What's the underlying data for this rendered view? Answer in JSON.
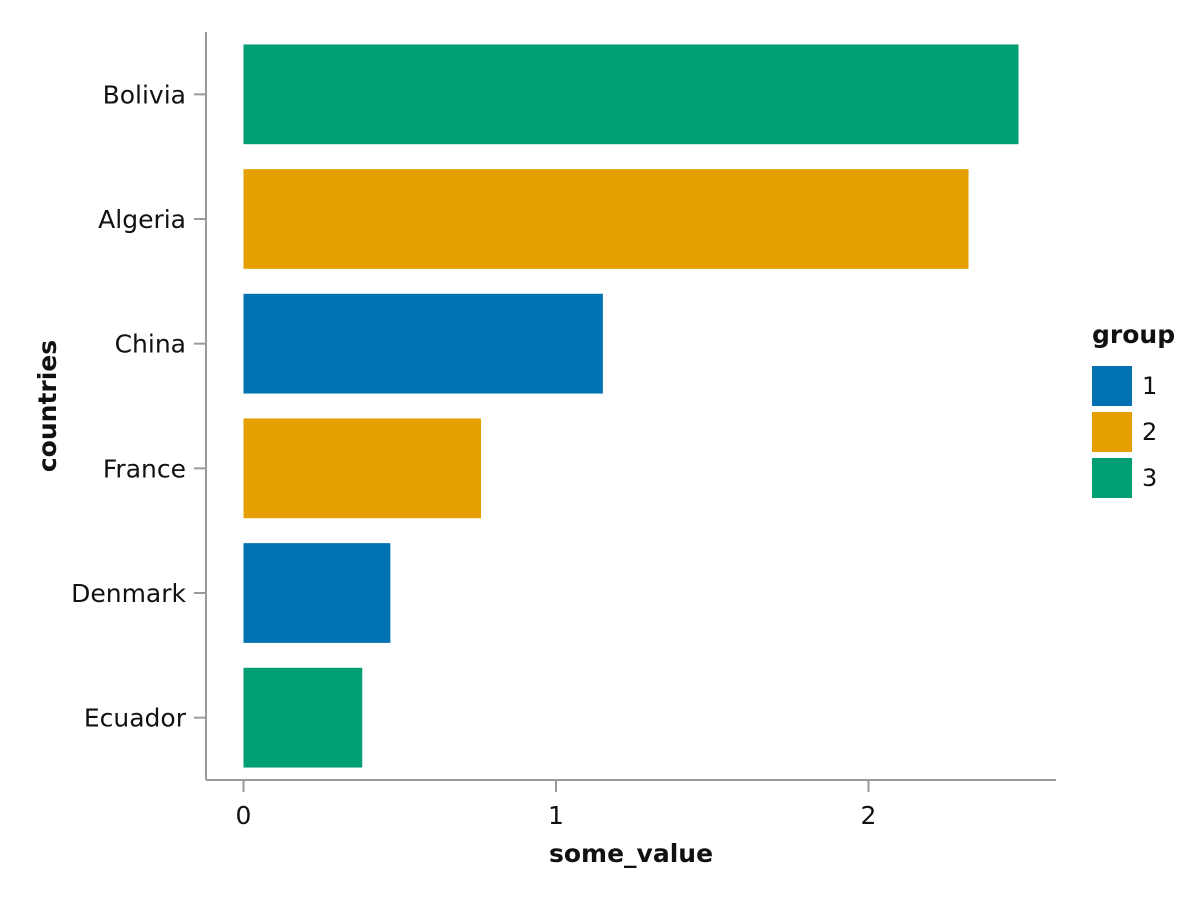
{
  "chart_data": {
    "type": "bar",
    "orientation": "horizontal",
    "categories": [
      "Bolivia",
      "Algeria",
      "China",
      "France",
      "Denmark",
      "Ecuador"
    ],
    "values": [
      2.48,
      2.32,
      1.15,
      0.76,
      0.47,
      0.38
    ],
    "groups": [
      "3",
      "2",
      "1",
      "2",
      "1",
      "3"
    ],
    "xlabel": "some_value",
    "ylabel": "countries",
    "xlim": [
      -0.12,
      2.6
    ],
    "xticks": [
      0,
      1,
      2
    ],
    "grid": false,
    "legend": {
      "title": "group",
      "placement": "right",
      "entries": [
        {
          "label": "1",
          "color": "#0072B2"
        },
        {
          "label": "2",
          "color": "#E69F00"
        },
        {
          "label": "3",
          "color": "#009E73"
        }
      ]
    },
    "group_colors": {
      "1": "#0072B2",
      "2": "#E69F00",
      "3": "#009E73"
    }
  }
}
